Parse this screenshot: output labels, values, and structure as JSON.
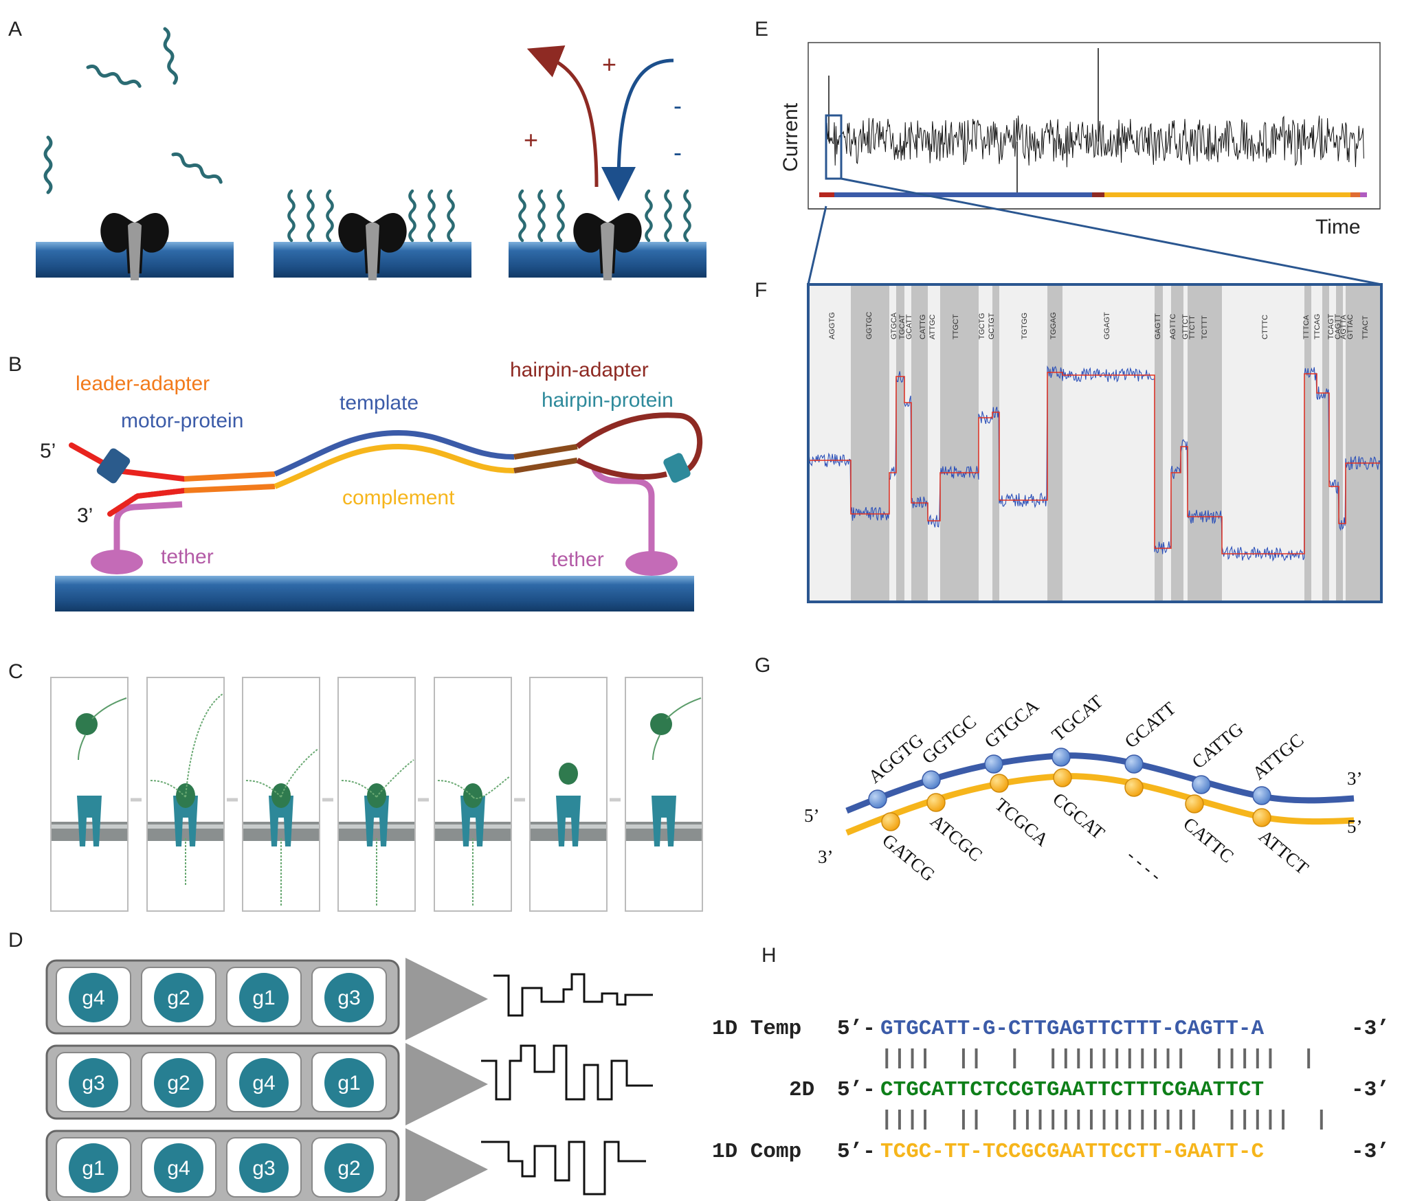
{
  "panels": {
    "A": "A",
    "B": "B",
    "C": "C",
    "D": "D",
    "E": "E",
    "F": "F",
    "G": "G",
    "H": "H"
  },
  "panelA": {
    "plus": "+",
    "minus": "-"
  },
  "panelB": {
    "five_prime": "5’",
    "three_prime": "3’",
    "leader_adapter": "leader-adapter",
    "motor_protein": "motor-protein",
    "template": "template",
    "complement": "complement",
    "hairpin_adapter": "hairpin-adapter",
    "hairpin_protein": "hairpin-protein",
    "tether_left": "tether",
    "tether_right": "tether"
  },
  "panelD": {
    "rows": [
      [
        "g4",
        "g2",
        "g1",
        "g3"
      ],
      [
        "g3",
        "g2",
        "g4",
        "g1"
      ],
      [
        "g1",
        "g4",
        "g3",
        "g2"
      ]
    ]
  },
  "panelE": {
    "ylabel": "Current",
    "xlabel": "Time"
  },
  "panelF": {
    "kmers": [
      "AGGTG",
      "GGTGC",
      "GTGCA",
      "TGCAT",
      "GCATT",
      "CATTG",
      "ATTGC",
      "TTGCT",
      "TGCTG",
      "GCTGT",
      "TGTGG",
      "TGGAG",
      "GGAGT",
      "GAGTT",
      "AGTTC",
      "GTTCT",
      "TTCTT",
      "TCTTT",
      "CTTTC",
      "TTTCA",
      "TTCAG",
      "TCAGT",
      "CAGTT",
      "AGTTA",
      "GTTAC",
      "TTACT"
    ]
  },
  "panelG": {
    "top_kmers": [
      "AGGTG",
      "GGTGC",
      "GTGCA",
      "TGCAT",
      "GCATT",
      "CATTG",
      "ATTGC"
    ],
    "bottom_kmers": [
      "GATCG",
      "ATCGC",
      "TCGCA",
      "CGCAT",
      "CATTC",
      "ATTCT"
    ],
    "five_prime_left": "5’",
    "three_prime_left": "3’",
    "three_prime_right": "3’",
    "five_prime_right": "5’",
    "dash": "- - - -"
  },
  "panelH": {
    "temp_label": "1D Temp",
    "temp_prefix": "5’-",
    "temp_seq": "GTGCATT-G-CTTGAGTTCTTT-CAGTT-A",
    "temp_suffix": "-3’",
    "bars1": "||||  ||  |  |||||||||||  |||||  |",
    "d2_label": "2D",
    "d2_prefix": "5’-",
    "d2_seq": "CTGCATTCTCCGTGAATTCTTTCGAATTCT",
    "d2_suffix": "-3’",
    "bars2": "||||  ||  |||||||||||||||  |||||  |",
    "comp_label": "1D Comp",
    "comp_prefix": "5’-",
    "comp_seq": "TCGC-TT-TCCGCGAATTCCTT-GAATT-C",
    "comp_suffix": "-3’"
  },
  "colors": {
    "blue": "#3b5ba8",
    "orange": "#f6b51b",
    "red": "#e8231e",
    "dark_red": "#8e2a23",
    "teal": "#2e8a9b",
    "pink": "#c46bb7",
    "green": "#0e7f19",
    "navy": "#1c4f8c"
  }
}
